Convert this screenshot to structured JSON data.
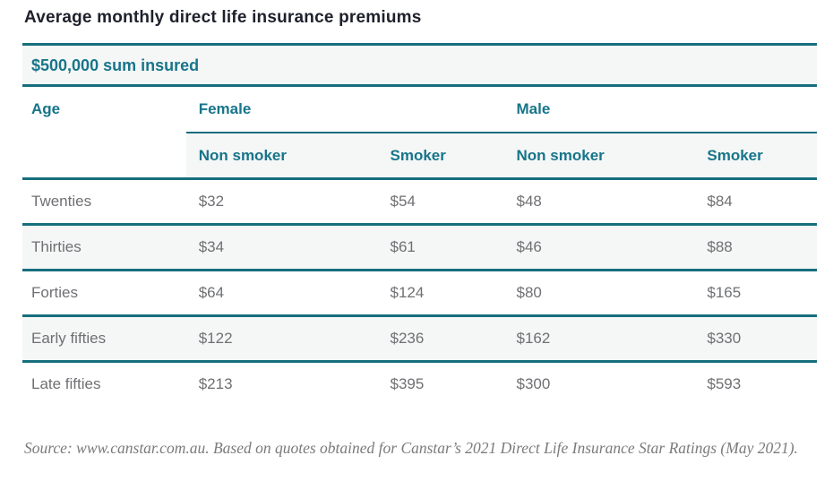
{
  "page": {
    "title": "Average monthly direct life insurance premiums",
    "subtitle": "$500,000 sum insured"
  },
  "table": {
    "age_header": "Age",
    "group_headers": [
      "Female",
      "Male"
    ],
    "sub_headers": [
      "Non smoker",
      "Smoker",
      "Non smoker",
      "Smoker"
    ],
    "rows": [
      {
        "age": "Twenties",
        "values": [
          "$32",
          "$54",
          "$48",
          "$84"
        ]
      },
      {
        "age": "Thirties",
        "values": [
          "$34",
          "$61",
          "$46",
          "$88"
        ]
      },
      {
        "age": "Forties",
        "values": [
          "$64",
          "$124",
          "$80",
          "$165"
        ]
      },
      {
        "age": "Early fifties",
        "values": [
          "$122",
          "$236",
          "$162",
          "$330"
        ]
      },
      {
        "age": "Late fifties",
        "values": [
          "$213",
          "$395",
          "$300",
          "$593"
        ]
      }
    ]
  },
  "source": {
    "text": "Source: www.canstar.com.au. Based on quotes obtained for Canstar’s 2021 Direct Life Insurance Star Ratings (May 2021)."
  },
  "colors": {
    "teal_line": "#166e7d",
    "teal_text": "#17758a",
    "title_text": "#1e202c",
    "body_text": "#6f7073",
    "band_background": "#f5f6f6",
    "source_text": "#7b7b7b"
  },
  "chart_data": {
    "type": "table",
    "title": "Average monthly direct life insurance premiums",
    "subtitle": "$500,000 sum insured",
    "column_groups": [
      {
        "name": "Female",
        "columns": [
          "Non smoker",
          "Smoker"
        ]
      },
      {
        "name": "Male",
        "columns": [
          "Non smoker",
          "Smoker"
        ]
      }
    ],
    "columns": [
      "Age",
      "Female Non smoker",
      "Female Smoker",
      "Male Non smoker",
      "Male Smoker"
    ],
    "rows": [
      [
        "Twenties",
        32,
        54,
        48,
        84
      ],
      [
        "Thirties",
        34,
        61,
        46,
        88
      ],
      [
        "Forties",
        64,
        124,
        80,
        165
      ],
      [
        "Early fifties",
        122,
        236,
        162,
        330
      ],
      [
        "Late fifties",
        213,
        395,
        300,
        593
      ]
    ],
    "source": "Source: www.canstar.com.au. Based on quotes obtained for Canstar’s 2021 Direct Life Insurance Star Ratings (May 2021)."
  }
}
